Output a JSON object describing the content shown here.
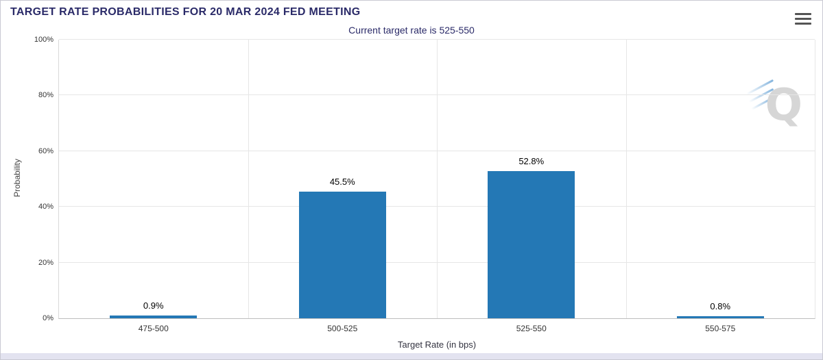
{
  "header": {
    "title": "TARGET RATE PROBABILITIES FOR 20 MAR 2024 FED MEETING",
    "menu_icon": "hamburger-icon"
  },
  "chart_data": {
    "type": "bar",
    "title": "Current target rate is 525-550",
    "categories": [
      "475-500",
      "500-525",
      "525-550",
      "550-575"
    ],
    "values": [
      0.9,
      45.5,
      52.8,
      0.8
    ],
    "data_labels": [
      "0.9%",
      "45.5%",
      "52.8%",
      "0.8%"
    ],
    "xlabel": "Target Rate (in bps)",
    "ylabel": "Probability",
    "ylim": [
      0,
      100
    ],
    "yticks": [
      0,
      20,
      40,
      60,
      80,
      100
    ],
    "ytick_labels": [
      "0%",
      "20%",
      "40%",
      "60%",
      "80%",
      "100%"
    ],
    "grid": true,
    "legend": "none",
    "bar_color": "#2478b5"
  },
  "watermark": {
    "letter": "Q"
  },
  "colors": {
    "title_navy": "#2a2a68",
    "bar_blue": "#2478b5",
    "gridline": "#e6e6e6"
  }
}
